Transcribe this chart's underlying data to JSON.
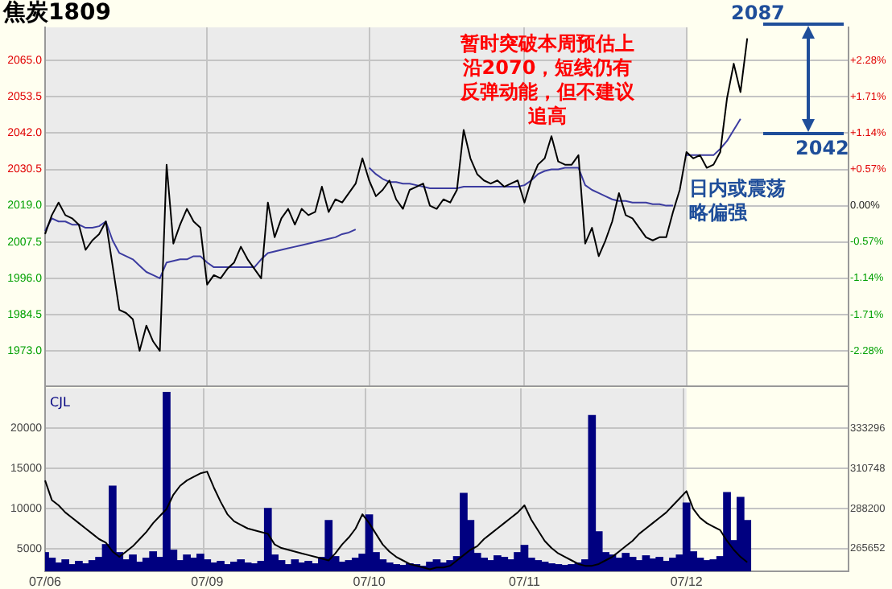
{
  "chart_data": [
    {
      "type": "line",
      "title": "焦炭1809",
      "categories": [
        "07/06",
        null,
        null,
        null,
        null,
        null,
        null,
        null,
        null,
        null,
        null,
        null,
        null,
        null,
        null,
        null,
        null,
        null,
        null,
        null,
        null,
        null,
        null,
        null,
        "07/09",
        null,
        null,
        null,
        null,
        null,
        null,
        null,
        null,
        null,
        null,
        null,
        null,
        null,
        null,
        null,
        null,
        null,
        null,
        null,
        null,
        null,
        null,
        null,
        "07/10",
        null,
        null,
        null,
        null,
        null,
        null,
        null,
        null,
        null,
        null,
        null,
        null,
        null,
        null,
        null,
        null,
        null,
        null,
        null,
        null,
        null,
        null,
        "07/11",
        null,
        null,
        null,
        null,
        null,
        null,
        null,
        null,
        null,
        null,
        null,
        null,
        null,
        null,
        null,
        null,
        null,
        null,
        null,
        null,
        null,
        null,
        null,
        "07/12",
        null,
        null,
        null,
        null,
        null,
        null,
        null,
        null,
        null,
        null,
        null,
        null,
        null,
        null,
        null,
        null,
        null,
        null,
        null,
        null,
        null,
        null,
        null,
        null
      ],
      "series": [
        {
          "type": "line",
          "color": "#000000",
          "values": [
            2010,
            2016,
            2020,
            2016,
            2015,
            2013,
            2005,
            2008,
            2010,
            2014,
            2000,
            1986,
            1985,
            1983,
            1973,
            1981,
            1976,
            1973,
            2032,
            2007,
            2013,
            2018,
            2014,
            2012,
            1994,
            1997,
            1996,
            1999,
            2001,
            2006,
            2002,
            1999,
            1996,
            2020,
            2009,
            2015,
            2018,
            2013,
            2018,
            2016,
            2017,
            2025,
            2017,
            2021,
            2020,
            2023,
            2026,
            2034,
            2027,
            2022,
            2024,
            2027,
            2021,
            2018,
            2024,
            2025,
            2026,
            2019,
            2018,
            2021,
            2020,
            2024,
            2043,
            2034,
            2029,
            2027,
            2026,
            2027,
            2025,
            2026,
            2027,
            2020,
            2027,
            2032,
            2034,
            2041,
            2033,
            2032,
            2032,
            2035,
            2007,
            2012,
            2003,
            2008,
            2014,
            2023,
            2016,
            2015,
            2012,
            2009,
            2008,
            2009,
            2009,
            2017,
            2024,
            2036,
            2034,
            2035,
            2031,
            2032,
            2036,
            2053,
            2064,
            2055,
            2072,
            null,
            null,
            null,
            null,
            null,
            null,
            null,
            null,
            null,
            null,
            null,
            null,
            null,
            null,
            null
          ]
        },
        {
          "type": "line",
          "color": "#3c3ca0",
          "values": [
            2011,
            2015,
            2014,
            2014,
            2013,
            2013,
            2012,
            2012,
            2012.5,
            2014,
            2008,
            2004,
            2003,
            2002,
            2000,
            1998,
            1997,
            1996,
            2001,
            2001.5,
            2002,
            2002,
            2003,
            2003,
            2001,
            1999.5,
            1999.5,
            1999.5,
            1999.5,
            1999.5,
            1999.5,
            1999.5,
            2002,
            2004,
            2004.5,
            2005,
            2005.5,
            2006,
            2006.5,
            2007,
            2007.5,
            2008,
            2008.5,
            2009,
            2010,
            2010.5,
            2011.5,
            null,
            2031,
            2029,
            2027.5,
            2026.5,
            2026.5,
            2026,
            2026,
            2025.5,
            2025,
            2024.5,
            2024.5,
            2024.5,
            2024.5,
            2024.5,
            2025,
            2025,
            2025,
            2025,
            2025,
            2025,
            2025,
            2025,
            2025,
            2025.5,
            2027,
            2029,
            2030,
            2030.5,
            2030.5,
            2031,
            2031,
            2031,
            2025.5,
            2024,
            2023,
            2022,
            2021,
            2020.5,
            2020.5,
            2020,
            2020,
            2020,
            2019.5,
            2019.5,
            2019,
            2019,
            null,
            2035,
            2035,
            2035,
            2035,
            2035,
            2037,
            2039.5,
            2043,
            2046.5,
            null,
            null,
            null,
            null,
            null,
            null,
            null,
            null,
            null,
            null,
            null,
            null,
            null,
            null,
            null,
            null
          ]
        }
      ],
      "ylim": [
        1961.9,
        2075.5
      ],
      "yticks": [
        {
          "value": 1973,
          "label": "1973.0"
        },
        {
          "value": 1984.5,
          "label": "1984.5"
        },
        {
          "value": 1996,
          "label": "1996.0"
        },
        {
          "value": 2007.5,
          "label": "2007.5"
        },
        {
          "value": 2019,
          "label": "2019.0"
        },
        {
          "value": 2030.5,
          "label": "2030.5"
        },
        {
          "value": 2042,
          "label": "2042.0"
        },
        {
          "value": 2053.5,
          "label": "2053.5"
        },
        {
          "value": 2065,
          "label": "2065.0"
        }
      ],
      "y2lim": [
        -2.83,
        2.8
      ],
      "y2ticks": [
        {
          "value": -2.28,
          "label": "-2.28%"
        },
        {
          "value": -1.71,
          "label": "-1.71%"
        },
        {
          "value": -1.14,
          "label": "-1.14%"
        },
        {
          "value": -0.57,
          "label": "-0.57%"
        },
        {
          "value": 0,
          "label": "0.00%"
        },
        {
          "value": 0.57,
          "label": "+0.57%"
        },
        {
          "value": 1.14,
          "label": "+1.14%"
        },
        {
          "value": 1.71,
          "label": "+1.71%"
        },
        {
          "value": 2.28,
          "label": "+2.28%"
        }
      ],
      "bands": [
        {
          "axis": "x",
          "from": "07/06",
          "to": "07/12",
          "color": "#ebebeb"
        }
      ],
      "annotations": [
        "暂时突破本周预估上沿2070，短线仍有反弹动能，但不建议追高",
        "日内或震荡略偏强",
        "2087",
        "2042"
      ],
      "grid": true,
      "marker": "none",
      "tick_labels": "y"
    },
    {
      "type": "bar",
      "categories": [
        "07/06",
        null,
        null,
        null,
        null,
        null,
        null,
        null,
        null,
        null,
        null,
        null,
        null,
        null,
        null,
        null,
        null,
        null,
        null,
        null,
        null,
        null,
        null,
        null,
        "07/09",
        null,
        null,
        null,
        null,
        null,
        null,
        null,
        null,
        null,
        null,
        null,
        null,
        null,
        null,
        null,
        null,
        null,
        null,
        null,
        null,
        null,
        null,
        null,
        "07/10",
        null,
        null,
        null,
        null,
        null,
        null,
        null,
        null,
        null,
        null,
        null,
        null,
        null,
        null,
        null,
        null,
        null,
        null,
        null,
        null,
        null,
        null,
        "07/11",
        null,
        null,
        null,
        null,
        null,
        null,
        null,
        null,
        null,
        null,
        null,
        null,
        null,
        null,
        null,
        null,
        null,
        null,
        null,
        null,
        null,
        null,
        null,
        "07/12",
        null,
        null,
        null,
        null,
        null,
        null,
        null,
        null,
        null,
        null,
        null,
        null,
        null,
        null,
        null,
        null,
        null,
        null,
        null,
        null,
        null,
        null,
        null,
        null
      ],
      "series": [
        {
          "name": "CJL",
          "type": "bar",
          "color": "#000080",
          "values": [
            4500,
            3800,
            3200,
            3600,
            3000,
            3400,
            3100,
            3500,
            3900,
            5500,
            12800,
            4500,
            3600,
            4200,
            3300,
            3800,
            4600,
            3900,
            24500,
            4800,
            3500,
            4200,
            3800,
            4300,
            3600,
            3200,
            3400,
            3000,
            3300,
            3600,
            3200,
            3100,
            3400,
            10000,
            4200,
            3500,
            3000,
            3600,
            3200,
            3400,
            3100,
            3900,
            8500,
            4000,
            3300,
            3500,
            3800,
            4300,
            9200,
            4500,
            3600,
            3200,
            3000,
            2900,
            3100,
            3000,
            2800,
            3300,
            3600,
            3200,
            3500,
            4000,
            11900,
            8500,
            4400,
            3800,
            3500,
            4100,
            3900,
            3600,
            4500,
            5400,
            3800,
            3500,
            3300,
            3100,
            3000,
            2900,
            3000,
            3200,
            3600,
            21600,
            7100,
            4500,
            4200,
            3800,
            4400,
            3900,
            3500,
            4100,
            3700,
            3900,
            3400,
            3800,
            4200,
            10700,
            4600,
            3800,
            3500,
            3600,
            4000,
            12000,
            6000,
            11400,
            8500,
            null,
            null,
            null,
            null,
            null,
            null,
            null,
            null,
            null,
            null,
            null,
            null,
            null,
            null,
            null
          ]
        },
        {
          "type": "line",
          "color": "#000000",
          "axis": "y2",
          "values": [
            304000,
            293000,
            290000,
            286000,
            283000,
            280000,
            277000,
            274000,
            271000,
            269000,
            264000,
            261000,
            264000,
            267000,
            271000,
            275000,
            280000,
            284000,
            288000,
            296000,
            301000,
            304000,
            306000,
            308000,
            309000,
            300000,
            292000,
            285000,
            281000,
            279000,
            277000,
            276000,
            275000,
            274000,
            268000,
            266000,
            265000,
            264000,
            263000,
            262000,
            261000,
            260000,
            259000,
            263000,
            268000,
            272000,
            277000,
            285000,
            280000,
            274000,
            268000,
            264000,
            261000,
            259000,
            257000,
            256000,
            255000,
            254000,
            255000,
            255000,
            256000,
            259000,
            262000,
            265000,
            267000,
            271000,
            274000,
            277000,
            280000,
            283000,
            286000,
            290000,
            282000,
            276000,
            270000,
            266000,
            263000,
            261000,
            259000,
            257000,
            256000,
            256000,
            257000,
            259000,
            261000,
            264000,
            267000,
            270000,
            274000,
            277000,
            280000,
            283000,
            286000,
            290000,
            294000,
            298000,
            288000,
            283000,
            280000,
            278000,
            276000,
            270000,
            265000,
            261000,
            258000,
            null,
            null,
            null,
            null,
            null,
            null,
            null,
            null,
            null,
            null,
            null,
            null,
            null,
            null,
            null
          ]
        }
      ],
      "ylim": [
        2170,
        25020
      ],
      "yticks": [
        5000,
        10000,
        15000,
        20000
      ],
      "y2lim": [
        252888,
        355960
      ],
      "y2ticks": [
        265652,
        288200,
        310748,
        333296
      ],
      "bands": [
        {
          "axis": "x",
          "from": "07/06",
          "to": "07/12",
          "color": "#ebebeb"
        }
      ],
      "grid": true,
      "marker": "none"
    }
  ]
}
